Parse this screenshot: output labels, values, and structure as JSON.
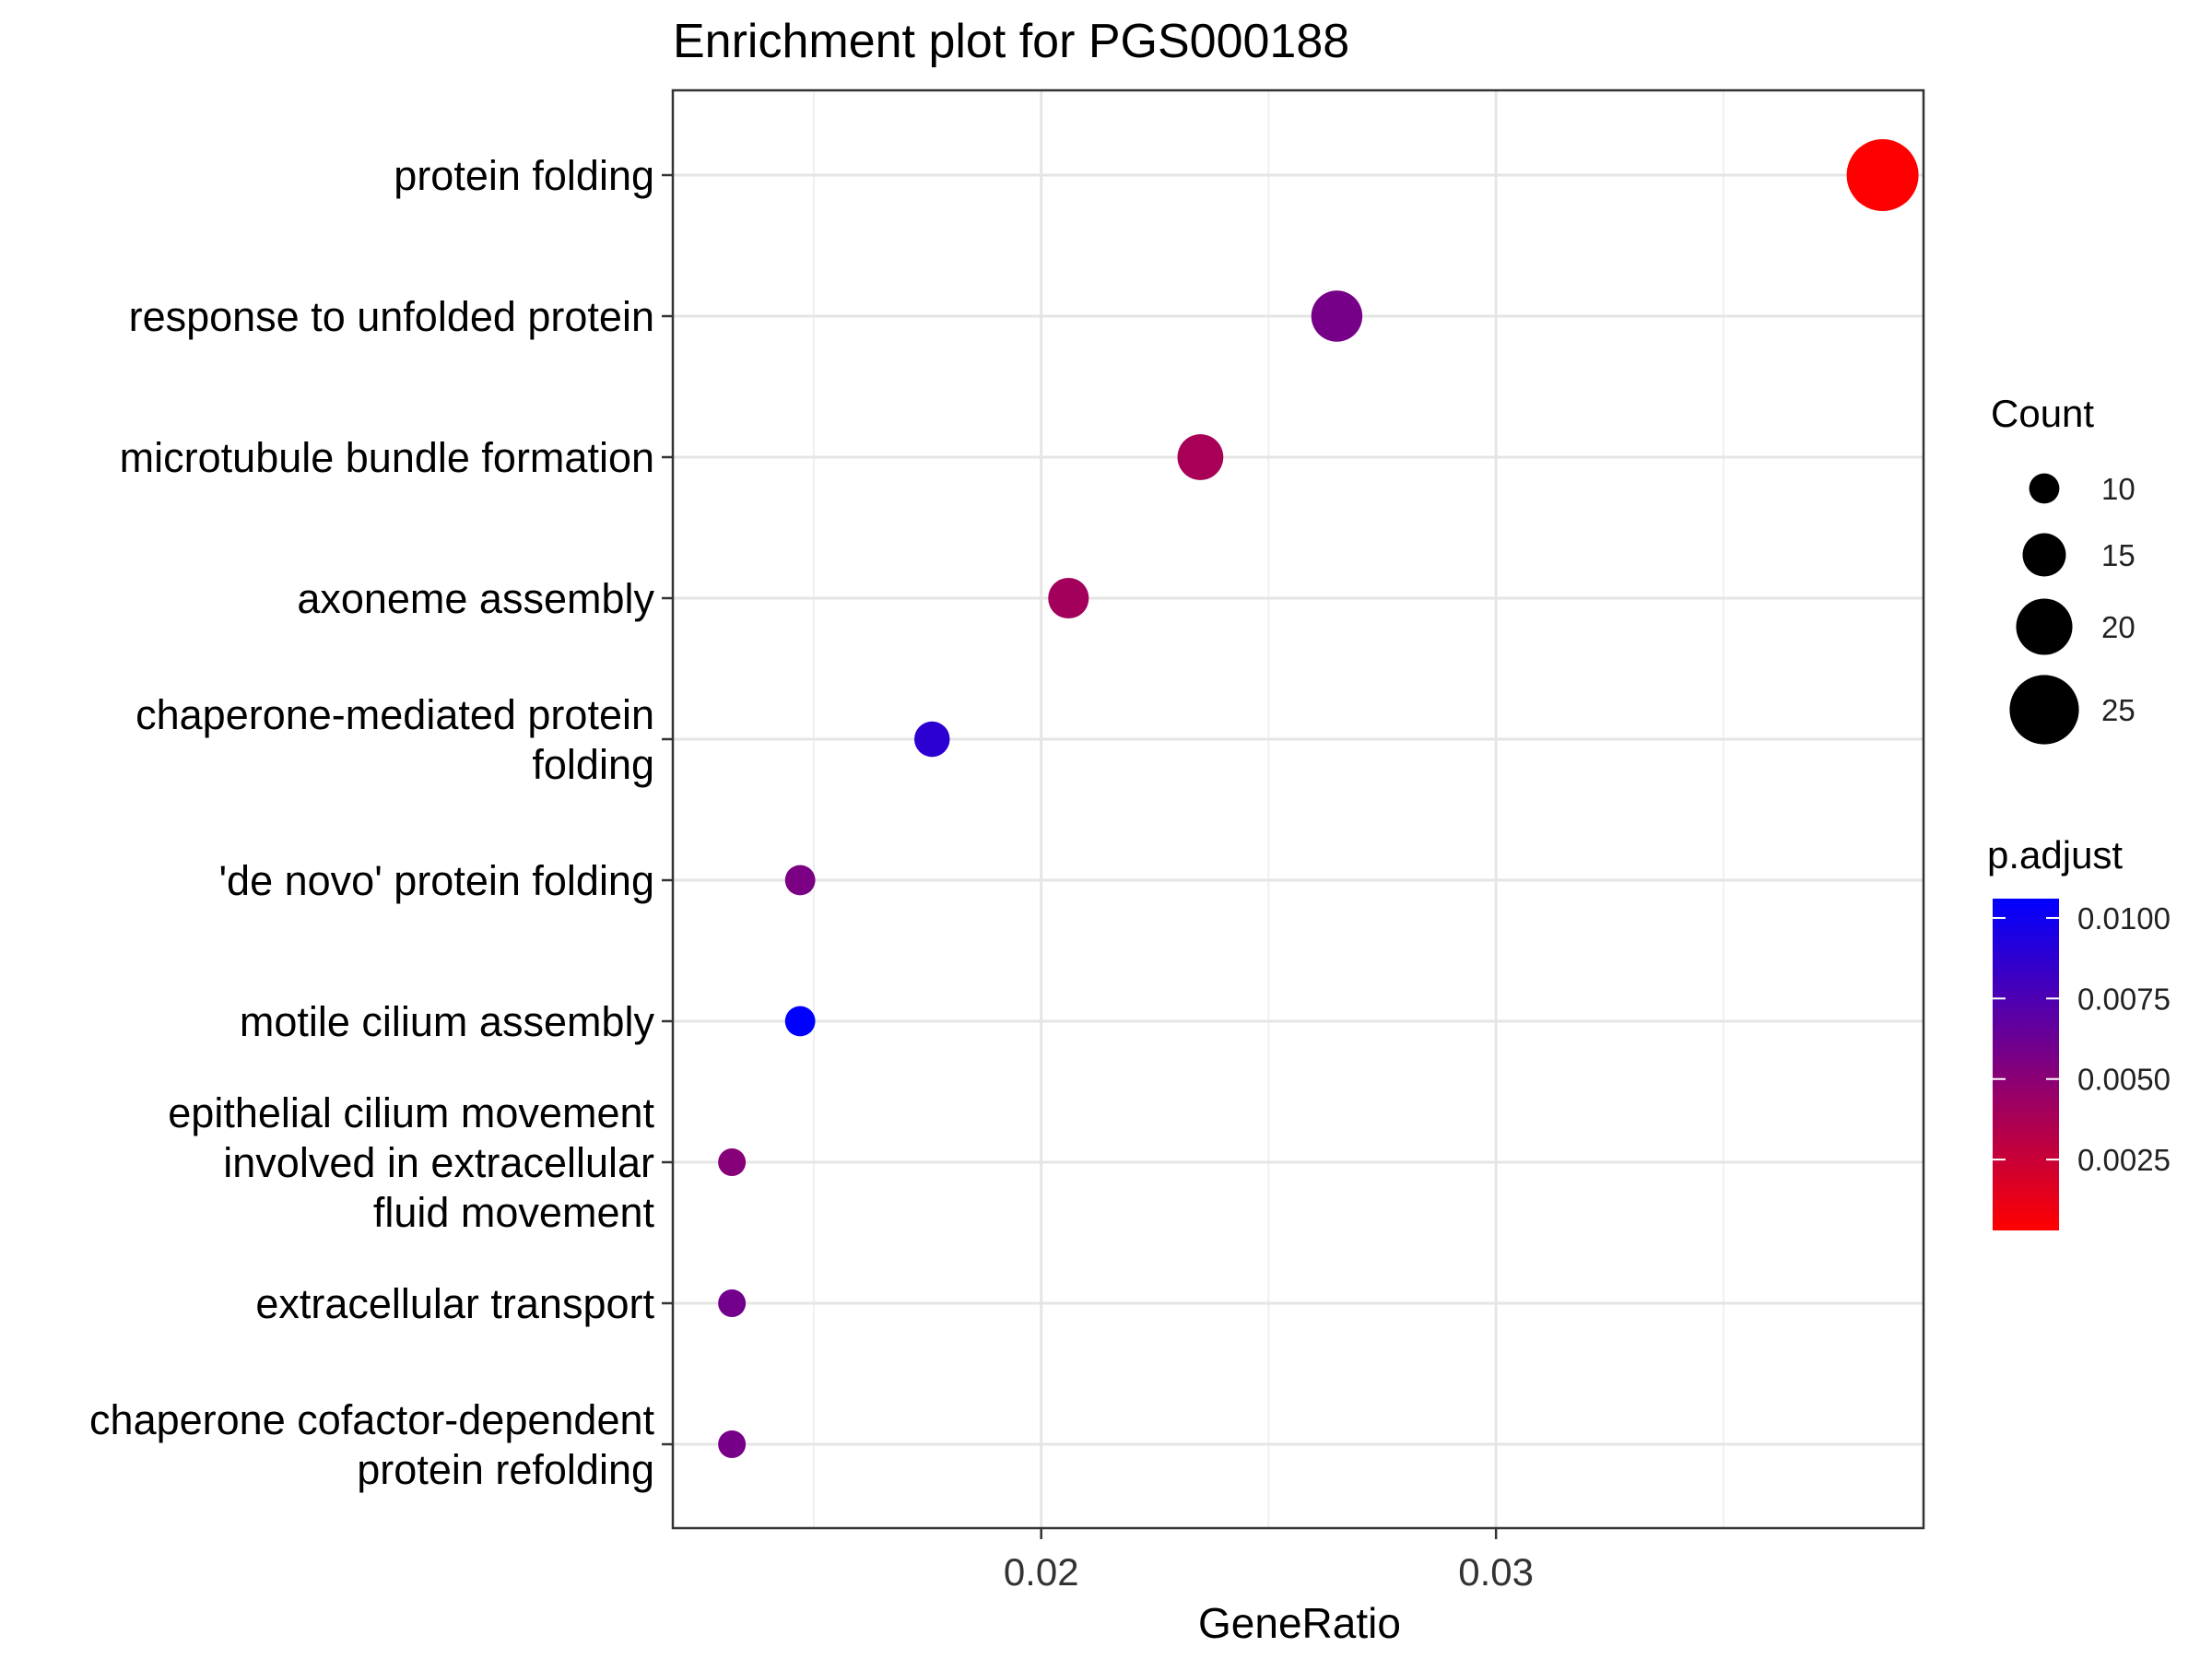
{
  "chart_data": {
    "type": "scatter",
    "title": "Enrichment plot for PGS000188",
    "xlabel": "GeneRatio",
    "ylabel": "",
    "xlim": [
      0.0119,
      0.0394
    ],
    "x_ticks": [
      0.02,
      0.03
    ],
    "x_tick_labels": [
      "0.02",
      "0.03"
    ],
    "grid": true,
    "categories": [
      "protein folding",
      "response to unfolded protein",
      "microtubule bundle formation",
      "axoneme assembly",
      "chaperone-mediated protein folding",
      "'de novo' protein folding",
      "motile cilium assembly",
      "epithelial cilium movement involved in extracellular fluid movement",
      "extracellular transport",
      "chaperone cofactor-dependent protein refolding"
    ],
    "category_lines": [
      [
        "protein folding"
      ],
      [
        "response to unfolded protein"
      ],
      [
        "microtubule bundle formation"
      ],
      [
        "axoneme assembly"
      ],
      [
        "chaperone-mediated protein",
        "folding"
      ],
      [
        "'de novo' protein folding"
      ],
      [
        "motile cilium assembly"
      ],
      [
        "epithelial cilium movement",
        "involved in extracellular",
        "fluid movement"
      ],
      [
        "extracellular transport"
      ],
      [
        "chaperone cofactor-dependent",
        "protein refolding"
      ]
    ],
    "points": [
      {
        "category": "protein folding",
        "gene_ratio": 0.0385,
        "count": 26,
        "p_adjust": 0.0003
      },
      {
        "category": "response to unfolded protein",
        "gene_ratio": 0.0265,
        "count": 18,
        "p_adjust": 0.0058
      },
      {
        "category": "microtubule bundle formation",
        "gene_ratio": 0.0235,
        "count": 16,
        "p_adjust": 0.0038
      },
      {
        "category": "axoneme assembly",
        "gene_ratio": 0.0206,
        "count": 14,
        "p_adjust": 0.004
      },
      {
        "category": "chaperone-mediated protein folding",
        "gene_ratio": 0.0176,
        "count": 12,
        "p_adjust": 0.0088
      },
      {
        "category": "'de novo' protein folding",
        "gene_ratio": 0.0147,
        "count": 10,
        "p_adjust": 0.0056
      },
      {
        "category": "motile cilium assembly",
        "gene_ratio": 0.0147,
        "count": 10,
        "p_adjust": 0.0106
      },
      {
        "category": "epithelial cilium movement involved in extracellular fluid movement",
        "gene_ratio": 0.0132,
        "count": 9,
        "p_adjust": 0.0052
      },
      {
        "category": "extracellular transport",
        "gene_ratio": 0.0132,
        "count": 9,
        "p_adjust": 0.006
      },
      {
        "category": "chaperone cofactor-dependent protein refolding",
        "gene_ratio": 0.0132,
        "count": 9,
        "p_adjust": 0.0058
      }
    ],
    "size_legend": {
      "title": "Count",
      "values": [
        10,
        15,
        20,
        25
      ],
      "labels": [
        "10",
        "15",
        "20",
        "25"
      ]
    },
    "color_legend": {
      "title": "p.adjust",
      "range": [
        0.0003,
        0.0106
      ],
      "low_color": "#ff0000",
      "high_color": "#0000ff",
      "ticks": [
        0.0025,
        0.005,
        0.0075,
        0.01
      ],
      "tick_labels": [
        "0.0025",
        "0.0050",
        "0.0075",
        "0.0100"
      ]
    },
    "count_range": [
      9,
      26
    ]
  }
}
